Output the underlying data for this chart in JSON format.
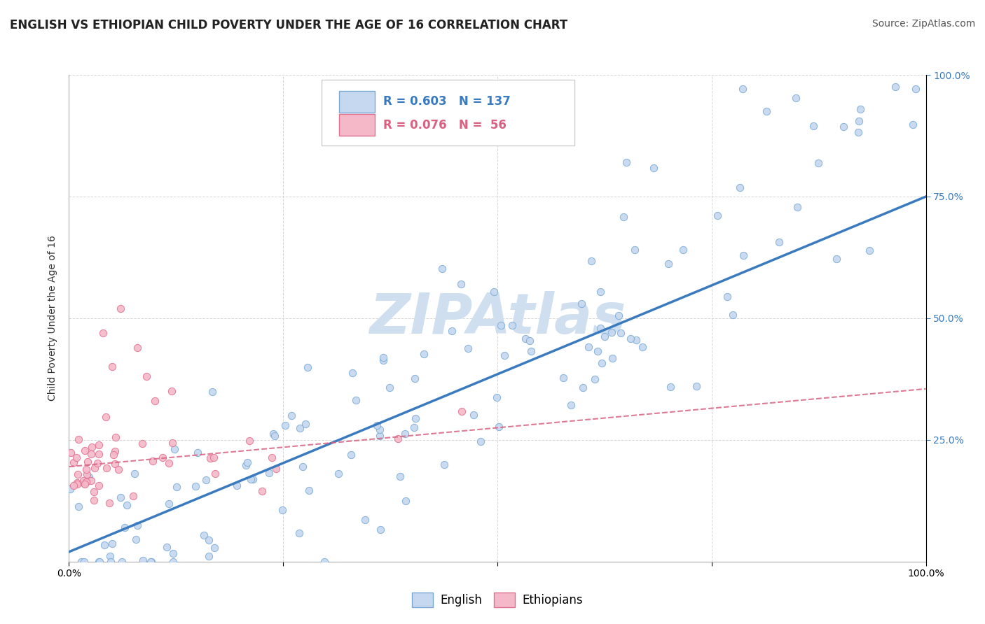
{
  "title": "ENGLISH VS ETHIOPIAN CHILD POVERTY UNDER THE AGE OF 16 CORRELATION CHART",
  "source": "Source: ZipAtlas.com",
  "ylabel": "Child Poverty Under the Age of 16",
  "xlim": [
    0,
    1
  ],
  "ylim": [
    0,
    1
  ],
  "xtick_labels": [
    "0.0%",
    "",
    "",
    "",
    "100.0%"
  ],
  "xtick_values": [
    0,
    0.25,
    0.5,
    0.75,
    1.0
  ],
  "ytick_labels": [
    "25.0%",
    "50.0%",
    "75.0%",
    "100.0%"
  ],
  "ytick_values": [
    0.25,
    0.5,
    0.75,
    1.0
  ],
  "english_color": "#c5d8f0",
  "english_edge_color": "#7aaad4",
  "ethiopian_color": "#f5b8c8",
  "ethiopian_edge_color": "#e07090",
  "trend_english_color": "#3a7abf",
  "trend_ethiopian_color": "#d96080",
  "right_tick_color": "#3a7abf",
  "watermark_text": "ZIPAtlas",
  "watermark_color": "#d0dff0",
  "background_color": "#ffffff",
  "grid_color": "#cccccc",
  "title_fontsize": 12,
  "axis_label_fontsize": 10,
  "tick_fontsize": 10,
  "legend_fontsize": 12,
  "source_fontsize": 10,
  "legend_R_english": "R = 0.603",
  "legend_N_english": "N = 137",
  "legend_R_ethiopian": "R = 0.076",
  "legend_N_ethiopian": "N =  56",
  "eng_trend_x0": 0.0,
  "eng_trend_y0": 0.02,
  "eng_trend_x1": 1.0,
  "eng_trend_y1": 0.75,
  "eth_trend_x0": 0.0,
  "eth_trend_y0": 0.195,
  "eth_trend_x1": 1.0,
  "eth_trend_y1": 0.355
}
